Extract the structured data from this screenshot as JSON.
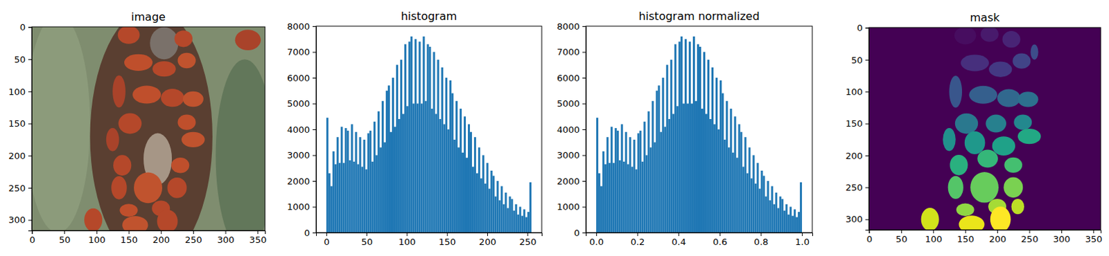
{
  "chart_data": [
    {
      "type": "image",
      "title": "image",
      "xlim": [
        -0.5,
        361.5
      ],
      "ylim": [
        316.5,
        -0.5
      ],
      "xticks": [
        0,
        50,
        100,
        150,
        200,
        250,
        300,
        350
      ],
      "yticks": [
        0,
        50,
        100,
        150,
        200,
        250,
        300
      ],
      "color": "#7f8d6f",
      "regions": [
        {
          "cx": 40,
          "cy": 150,
          "rx": 50,
          "ry": 170,
          "color": "#8c9b7b"
        },
        {
          "cx": 330,
          "cy": 200,
          "rx": 45,
          "ry": 150,
          "color": "#62775a"
        },
        {
          "cx": 185,
          "cy": 170,
          "rx": 95,
          "ry": 200,
          "color": "#5a3f31"
        },
        {
          "cx": 205,
          "cy": 25,
          "rx": 22,
          "ry": 25,
          "color": "#7a716a"
        },
        {
          "cx": 195,
          "cy": 205,
          "rx": 22,
          "ry": 40,
          "color": "#a69686"
        },
        {
          "cx": 150,
          "cy": 12,
          "rx": 17,
          "ry": 14,
          "color": "#b5482a"
        },
        {
          "cx": 235,
          "cy": 18,
          "rx": 14,
          "ry": 13,
          "color": "#b5482a"
        },
        {
          "cx": 165,
          "cy": 55,
          "rx": 22,
          "ry": 13,
          "color": "#bf4f2c"
        },
        {
          "cx": 205,
          "cy": 65,
          "rx": 18,
          "ry": 12,
          "color": "#b5482a"
        },
        {
          "cx": 240,
          "cy": 52,
          "rx": 14,
          "ry": 12,
          "color": "#c0532e"
        },
        {
          "cx": 135,
          "cy": 100,
          "rx": 10,
          "ry": 25,
          "color": "#a9432a"
        },
        {
          "cx": 178,
          "cy": 105,
          "rx": 22,
          "ry": 14,
          "color": "#bf4f2c"
        },
        {
          "cx": 218,
          "cy": 110,
          "rx": 18,
          "ry": 14,
          "color": "#b5482a"
        },
        {
          "cx": 250,
          "cy": 112,
          "rx": 16,
          "ry": 12,
          "color": "#c0532e"
        },
        {
          "cx": 152,
          "cy": 150,
          "rx": 18,
          "ry": 16,
          "color": "#b5482a"
        },
        {
          "cx": 240,
          "cy": 148,
          "rx": 14,
          "ry": 12,
          "color": "#bf4f2c"
        },
        {
          "cx": 125,
          "cy": 175,
          "rx": 10,
          "ry": 18,
          "color": "#a9432a"
        },
        {
          "cx": 250,
          "cy": 175,
          "rx": 18,
          "ry": 12,
          "color": "#c0532e"
        },
        {
          "cx": 140,
          "cy": 215,
          "rx": 14,
          "ry": 16,
          "color": "#b5482a"
        },
        {
          "cx": 230,
          "cy": 215,
          "rx": 14,
          "ry": 12,
          "color": "#bf4f2c"
        },
        {
          "cx": 135,
          "cy": 250,
          "rx": 12,
          "ry": 18,
          "color": "#b5482a"
        },
        {
          "cx": 180,
          "cy": 250,
          "rx": 22,
          "ry": 24,
          "color": "#c0532e"
        },
        {
          "cx": 225,
          "cy": 250,
          "rx": 15,
          "ry": 16,
          "color": "#b5482a"
        },
        {
          "cx": 150,
          "cy": 285,
          "rx": 14,
          "ry": 10,
          "color": "#bf4f2c"
        },
        {
          "cx": 200,
          "cy": 282,
          "rx": 14,
          "ry": 12,
          "color": "#b5482a"
        },
        {
          "cx": 95,
          "cy": 300,
          "rx": 14,
          "ry": 18,
          "color": "#b5482a"
        },
        {
          "cx": 160,
          "cy": 308,
          "rx": 20,
          "ry": 14,
          "color": "#c0532e"
        },
        {
          "cx": 210,
          "cy": 302,
          "rx": 16,
          "ry": 18,
          "color": "#b5482a"
        },
        {
          "cx": 335,
          "cy": 20,
          "rx": 20,
          "ry": 16,
          "color": "#a9432a"
        }
      ]
    },
    {
      "type": "histogram",
      "title": "histogram",
      "color": "#1f77b4",
      "bins": [
        0,
        2.55,
        5.1,
        7.65,
        10.2,
        12.75,
        15.3,
        17.85,
        20.4,
        22.95,
        25.5,
        28.05,
        30.6,
        33.15,
        35.7,
        38.25,
        40.8,
        43.35,
        45.9,
        48.45,
        51,
        53.55,
        56.1,
        58.65,
        61.2,
        63.75,
        66.3,
        68.85,
        71.4,
        73.95,
        76.5,
        79.05,
        81.6,
        84.15,
        86.7,
        89.25,
        91.8,
        94.35,
        96.9,
        99.45,
        102,
        104.55,
        107.1,
        109.65,
        112.2,
        114.75,
        117.3,
        119.85,
        122.4,
        124.95,
        127.5,
        130.05,
        132.6,
        135.15,
        137.7,
        140.25,
        142.8,
        145.35,
        147.9,
        150.45,
        153,
        155.55,
        158.1,
        160.65,
        163.2,
        165.75,
        168.3,
        170.85,
        173.4,
        175.95,
        178.5,
        181.05,
        183.6,
        186.15,
        188.7,
        191.25,
        193.8,
        196.35,
        198.9,
        201.45,
        204,
        206.55,
        209.1,
        211.65,
        214.2,
        216.75,
        219.3,
        221.85,
        224.4,
        226.95,
        229.5,
        232.05,
        234.6,
        237.15,
        239.7,
        242.25,
        244.8,
        247.35,
        249.9,
        252.45,
        255
      ],
      "values": [
        4450,
        2300,
        1800,
        3150,
        2650,
        3700,
        2700,
        4100,
        2700,
        4050,
        3950,
        2800,
        4200,
        2750,
        3900,
        2650,
        3700,
        2550,
        3600,
        2450,
        3850,
        3950,
        2750,
        4300,
        3000,
        4700,
        3300,
        5100,
        3500,
        5500,
        5700,
        3900,
        6000,
        4100,
        6500,
        4400,
        6700,
        4600,
        7300,
        4900,
        7400,
        7600,
        5000,
        7500,
        5000,
        7400,
        5000,
        7600,
        5100,
        7300,
        7200,
        4800,
        7000,
        4600,
        6700,
        4400,
        6400,
        4200,
        6000,
        4000,
        5900,
        5400,
        3600,
        5100,
        3300,
        4800,
        3100,
        4500,
        2900,
        4200,
        3900,
        2550,
        3700,
        2300,
        3300,
        2100,
        3000,
        1900,
        2700,
        1700,
        2400,
        2200,
        1400,
        2000,
        1250,
        1800,
        1100,
        1550,
        950,
        1400,
        1300,
        850,
        1100,
        700,
        1000,
        650,
        900,
        600,
        800,
        1950
      ],
      "xlim": [
        -12.75,
        267.75
      ],
      "ylim": [
        0,
        8000
      ],
      "xticks": [
        0,
        50,
        100,
        150,
        200,
        250
      ],
      "yticks": [
        0,
        1000,
        2000,
        3000,
        4000,
        5000,
        6000,
        7000,
        8000
      ]
    },
    {
      "type": "histogram",
      "title": "histogram normalized",
      "color": "#1f77b4",
      "bins": [
        0,
        0.01,
        0.02,
        0.03,
        0.04,
        0.05,
        0.06,
        0.07,
        0.08,
        0.09,
        0.1,
        0.11,
        0.12,
        0.13,
        0.14,
        0.15,
        0.16,
        0.17,
        0.18,
        0.19,
        0.2,
        0.21,
        0.22,
        0.23,
        0.24,
        0.25,
        0.26,
        0.27,
        0.28,
        0.29,
        0.3,
        0.31,
        0.32,
        0.33,
        0.34,
        0.35,
        0.36,
        0.37,
        0.38,
        0.39,
        0.4,
        0.41,
        0.42,
        0.43,
        0.44,
        0.45,
        0.46,
        0.47,
        0.48,
        0.49,
        0.5,
        0.51,
        0.52,
        0.53,
        0.54,
        0.55,
        0.56,
        0.57,
        0.58,
        0.59,
        0.6,
        0.61,
        0.62,
        0.63,
        0.64,
        0.65,
        0.66,
        0.67,
        0.68,
        0.69,
        0.7,
        0.71,
        0.72,
        0.73,
        0.74,
        0.75,
        0.76,
        0.77,
        0.78,
        0.79,
        0.8,
        0.81,
        0.82,
        0.83,
        0.84,
        0.85,
        0.86,
        0.87,
        0.88,
        0.89,
        0.9,
        0.91,
        0.92,
        0.93,
        0.94,
        0.95,
        0.96,
        0.97,
        0.98,
        0.99,
        1
      ],
      "values": [
        4450,
        2300,
        1800,
        3150,
        2650,
        3700,
        2700,
        4100,
        2700,
        4050,
        3950,
        2800,
        4200,
        2750,
        3900,
        2650,
        3700,
        2550,
        3600,
        2450,
        3850,
        3950,
        2750,
        4300,
        3000,
        4700,
        3300,
        5100,
        3500,
        5500,
        5700,
        3900,
        6000,
        4100,
        6500,
        4400,
        6700,
        4600,
        7300,
        4900,
        7400,
        7600,
        5000,
        7500,
        5000,
        7400,
        5000,
        7600,
        5100,
        7300,
        7200,
        4800,
        7000,
        4600,
        6700,
        4400,
        6400,
        4200,
        6000,
        4000,
        5900,
        5400,
        3600,
        5100,
        3300,
        4800,
        3100,
        4500,
        2900,
        4200,
        3900,
        2550,
        3700,
        2300,
        3300,
        2100,
        3000,
        1900,
        2700,
        1700,
        2400,
        2200,
        1400,
        2000,
        1250,
        1800,
        1100,
        1550,
        950,
        1400,
        1300,
        850,
        1100,
        700,
        1000,
        650,
        900,
        600,
        800,
        1950
      ],
      "xlim": [
        -0.05,
        1.05
      ],
      "ylim": [
        0,
        8000
      ],
      "xticks": [
        {
          "value": 0,
          "label": "0.0"
        },
        {
          "value": 0.2,
          "label": "0.2"
        },
        {
          "value": 0.4,
          "label": "0.4"
        },
        {
          "value": 0.6,
          "label": "0.6"
        },
        {
          "value": 0.8,
          "label": "0.8"
        },
        {
          "value": 1,
          "label": "1.0"
        }
      ],
      "yticks": [
        0,
        1000,
        2000,
        3000,
        4000,
        5000,
        6000,
        7000,
        8000
      ]
    },
    {
      "type": "labels",
      "title": "mask",
      "xlim": [
        -0.5,
        361.5
      ],
      "ylim": [
        316.5,
        -0.5
      ],
      "xticks": [
        0,
        50,
        100,
        150,
        200,
        250,
        300,
        350
      ],
      "yticks": [
        0,
        50,
        100,
        150,
        200,
        250,
        300
      ],
      "clim": [
        0,
        30
      ],
      "objects": [
        {
          "label": 1,
          "cx": 150,
          "cy": 12,
          "rx": 17,
          "ry": 14
        },
        {
          "label": 2,
          "cx": 188,
          "cy": 10,
          "rx": 14,
          "ry": 12
        },
        {
          "label": 3,
          "cx": 222,
          "cy": 18,
          "rx": 14,
          "ry": 13
        },
        {
          "label": 4,
          "cx": 165,
          "cy": 55,
          "rx": 22,
          "ry": 13
        },
        {
          "label": 5,
          "cx": 205,
          "cy": 65,
          "rx": 18,
          "ry": 12
        },
        {
          "label": 6,
          "cx": 238,
          "cy": 52,
          "rx": 14,
          "ry": 12
        },
        {
          "label": 7,
          "cx": 258,
          "cy": 38,
          "rx": 6,
          "ry": 12
        },
        {
          "label": 8,
          "cx": 135,
          "cy": 100,
          "rx": 10,
          "ry": 25
        },
        {
          "label": 9,
          "cx": 178,
          "cy": 105,
          "rx": 22,
          "ry": 14
        },
        {
          "label": 10,
          "cx": 218,
          "cy": 110,
          "rx": 18,
          "ry": 14
        },
        {
          "label": 11,
          "cx": 248,
          "cy": 112,
          "rx": 16,
          "ry": 12
        },
        {
          "label": 12,
          "cx": 152,
          "cy": 150,
          "rx": 18,
          "ry": 16
        },
        {
          "label": 13,
          "cx": 198,
          "cy": 150,
          "rx": 16,
          "ry": 14
        },
        {
          "label": 14,
          "cx": 240,
          "cy": 148,
          "rx": 14,
          "ry": 12
        },
        {
          "label": 15,
          "cx": 125,
          "cy": 175,
          "rx": 10,
          "ry": 18
        },
        {
          "label": 16,
          "cx": 165,
          "cy": 180,
          "rx": 16,
          "ry": 18
        },
        {
          "label": 17,
          "cx": 210,
          "cy": 185,
          "rx": 18,
          "ry": 15
        },
        {
          "label": 18,
          "cx": 250,
          "cy": 170,
          "rx": 18,
          "ry": 12
        },
        {
          "label": 19,
          "cx": 140,
          "cy": 215,
          "rx": 14,
          "ry": 16
        },
        {
          "label": 20,
          "cx": 185,
          "cy": 205,
          "rx": 16,
          "ry": 14
        },
        {
          "label": 21,
          "cx": 225,
          "cy": 215,
          "rx": 14,
          "ry": 12
        },
        {
          "label": 22,
          "cx": 135,
          "cy": 250,
          "rx": 12,
          "ry": 18
        },
        {
          "label": 23,
          "cx": 180,
          "cy": 250,
          "rx": 22,
          "ry": 24
        },
        {
          "label": 24,
          "cx": 225,
          "cy": 250,
          "rx": 15,
          "ry": 16
        },
        {
          "label": 25,
          "cx": 150,
          "cy": 285,
          "rx": 14,
          "ry": 10
        },
        {
          "label": 26,
          "cx": 200,
          "cy": 280,
          "rx": 14,
          "ry": 12
        },
        {
          "label": 27,
          "cx": 232,
          "cy": 280,
          "rx": 10,
          "ry": 12
        },
        {
          "label": 28,
          "cx": 95,
          "cy": 300,
          "rx": 14,
          "ry": 18
        },
        {
          "label": 29,
          "cx": 160,
          "cy": 308,
          "rx": 20,
          "ry": 14
        },
        {
          "label": 30,
          "cx": 205,
          "cy": 300,
          "rx": 16,
          "ry": 20
        }
      ]
    }
  ]
}
